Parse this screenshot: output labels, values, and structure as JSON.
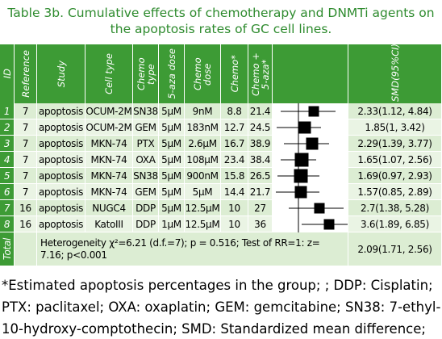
{
  "title": "Table 3b. Cumulative effects of chemotherapy and DNMTi agents on the apoptosis rates of GC cell lines.",
  "table": {
    "headers": [
      "ID",
      "Reference",
      "Study",
      "Cell type",
      "Chemo type",
      "5-aza dose",
      "Chemo dose",
      "Chemo*",
      "Chemo + 5-aza*",
      "SMD(95%CI)"
    ],
    "rows": [
      [
        "1",
        "7",
        "apoptosis",
        "OCUM-2M",
        "SN38",
        "5μM",
        "9nM",
        "8.8",
        "21.4",
        "2.33(1.12, 4.84)"
      ],
      [
        "2",
        "7",
        "apoptosis",
        "OCUM-2M",
        "GEM",
        "5μM",
        "183nM",
        "12.7",
        "24.5",
        "1.85(1, 3.42)"
      ],
      [
        "3",
        "7",
        "apoptosis",
        "MKN-74",
        "PTX",
        "5μM",
        "2.6μM",
        "16.7",
        "38.9",
        "2.29(1.39, 3.77)"
      ],
      [
        "4",
        "7",
        "apoptosis",
        "MKN-74",
        "OXA",
        "5μM",
        "108μM",
        "23.4",
        "38.4",
        "1.65(1.07, 2.56)"
      ],
      [
        "5",
        "7",
        "apoptosis",
        "MKN-74",
        "SN38",
        "5μM",
        "900nM",
        "15.8",
        "26.5",
        "1.69(0.97, 2.93)"
      ],
      [
        "6",
        "7",
        "apoptosis",
        "MKN-74",
        "GEM",
        "5μM",
        "5μM",
        "14.4",
        "21.7",
        "1.57(0.85, 2.89)"
      ],
      [
        "7",
        "16",
        "apoptosis",
        "NUGC4",
        "DDP",
        "5μM",
        "12.5μM",
        "10",
        "27",
        "2.7(1.38, 5.28)"
      ],
      [
        "8",
        "16",
        "apoptosis",
        "KatoIII",
        "DDP",
        "1μM",
        "12.5μM",
        "10",
        "36",
        "3.6(1.89, 6.85)"
      ]
    ],
    "total": {
      "label": "Total",
      "text": "Heterogeneity χ²=6.21 (d.f.=7); p = 0.516; Test of RR=1: z= 7.16; p<0.001",
      "smd": "2.09(1.71, 2.56)"
    }
  },
  "footnote": "*Estimated apoptosis percentages in the group; ; DDP: Cisplatin; PTX: paclitaxel; OXA: oxaplatin; GEM: gemcitabine; SN38: 7-ethyl-10-hydroxy-comptothecin; SMD: Standardized mean difference;"
}
